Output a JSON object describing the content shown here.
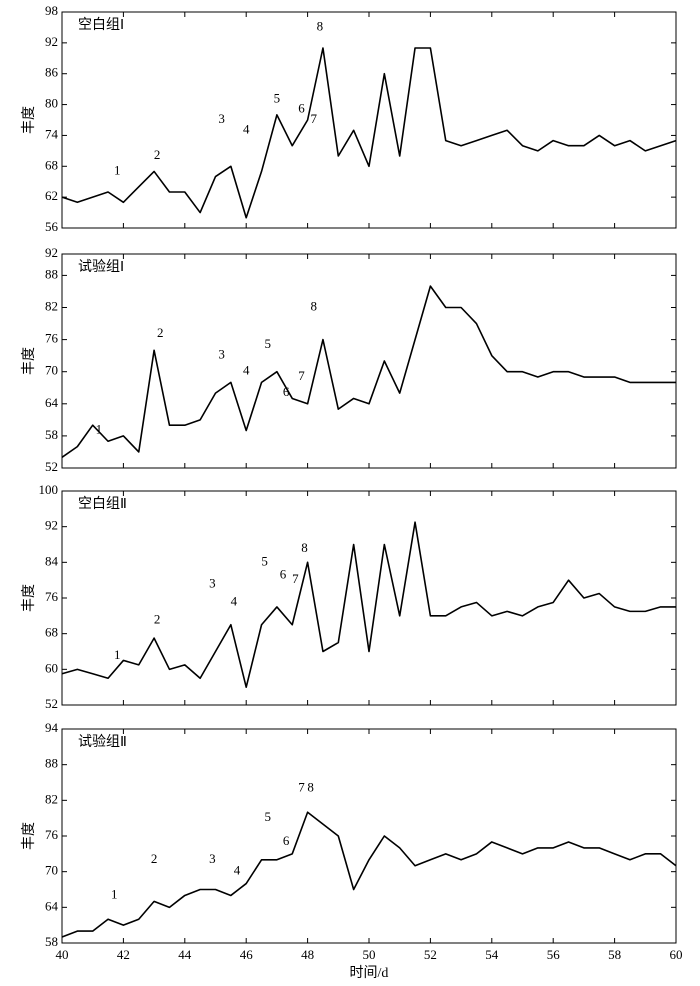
{
  "chart_data": [
    {
      "type": "line",
      "title": "空白组Ⅰ",
      "ylabel": "丰度",
      "color": "#000000",
      "x": [
        40,
        40.5,
        41,
        41.5,
        42,
        42.5,
        43,
        43.5,
        44,
        44.5,
        45,
        45.5,
        46,
        46.5,
        47,
        47.5,
        48,
        48.5,
        49,
        49.5,
        50,
        50.5,
        51,
        51.5,
        52,
        52.5,
        53,
        53.5,
        54,
        54.5,
        55,
        55.5,
        56,
        56.5,
        57,
        57.5,
        58,
        58.5,
        59,
        59.5,
        60
      ],
      "values": [
        62,
        61,
        62,
        63,
        61,
        64,
        67,
        63,
        63,
        59,
        66,
        68,
        58,
        67,
        78,
        72,
        77,
        91,
        70,
        75,
        68,
        86,
        70,
        91,
        91,
        73,
        72,
        73,
        74,
        75,
        72,
        71,
        73,
        72,
        72,
        74,
        72,
        73,
        71,
        72,
        73
      ],
      "xlim": [
        40,
        60
      ],
      "xticks": [
        40,
        42,
        44,
        46,
        48,
        50,
        52,
        54,
        56,
        58,
        60
      ],
      "xtick_labels": false,
      "ylim": [
        56,
        98
      ],
      "yticks": [
        56,
        62,
        68,
        74,
        80,
        86,
        92,
        98
      ],
      "annotations": [
        {
          "text": "1",
          "x": 41.8,
          "y": 67
        },
        {
          "text": "2",
          "x": 43.1,
          "y": 70
        },
        {
          "text": "3",
          "x": 45.2,
          "y": 77
        },
        {
          "text": "4",
          "x": 46,
          "y": 75
        },
        {
          "text": "5",
          "x": 47,
          "y": 81
        },
        {
          "text": "6",
          "x": 47.8,
          "y": 79
        },
        {
          "text": "7",
          "x": 48.2,
          "y": 77
        },
        {
          "text": "8",
          "x": 48.4,
          "y": 95
        }
      ]
    },
    {
      "type": "line",
      "title": "试验组Ⅰ",
      "ylabel": "丰度",
      "color": "#000000",
      "x": [
        40,
        40.5,
        41,
        41.5,
        42,
        42.5,
        43,
        43.5,
        44,
        44.5,
        45,
        45.5,
        46,
        46.5,
        47,
        47.5,
        48,
        48.5,
        49,
        49.5,
        50,
        50.5,
        51,
        51.5,
        52,
        52.5,
        53,
        53.5,
        54,
        54.5,
        55,
        55.5,
        56,
        56.5,
        57,
        57.5,
        58,
        58.5,
        59,
        59.5,
        60
      ],
      "values": [
        54,
        56,
        60,
        57,
        58,
        55,
        74,
        60,
        60,
        61,
        66,
        68,
        59,
        68,
        70,
        65,
        64,
        76,
        63,
        65,
        64,
        72,
        66,
        76,
        86,
        82,
        82,
        79,
        73,
        70,
        70,
        69,
        70,
        70,
        69,
        69,
        69,
        68,
        68,
        68,
        68
      ],
      "xlim": [
        40,
        60
      ],
      "xticks": [
        40,
        42,
        44,
        46,
        48,
        50,
        52,
        54,
        56,
        58,
        60
      ],
      "xtick_labels": false,
      "ylim": [
        52,
        92
      ],
      "yticks": [
        52,
        58,
        64,
        70,
        76,
        82,
        88,
        92
      ],
      "annotations": [
        {
          "text": "1",
          "x": 41.2,
          "y": 59
        },
        {
          "text": "2",
          "x": 43.2,
          "y": 77
        },
        {
          "text": "3",
          "x": 45.2,
          "y": 73
        },
        {
          "text": "4",
          "x": 46,
          "y": 70
        },
        {
          "text": "5",
          "x": 46.7,
          "y": 75
        },
        {
          "text": "6",
          "x": 47.3,
          "y": 66
        },
        {
          "text": "7",
          "x": 47.8,
          "y": 69
        },
        {
          "text": "8",
          "x": 48.2,
          "y": 82
        }
      ]
    },
    {
      "type": "line",
      "title": "空白组Ⅱ",
      "ylabel": "丰度",
      "color": "#000000",
      "x": [
        40,
        40.5,
        41,
        41.5,
        42,
        42.5,
        43,
        43.5,
        44,
        44.5,
        45,
        45.5,
        46,
        46.5,
        47,
        47.5,
        48,
        48.5,
        49,
        49.5,
        50,
        50.5,
        51,
        51.5,
        52,
        52.5,
        53,
        53.5,
        54,
        54.5,
        55,
        55.5,
        56,
        56.5,
        57,
        57.5,
        58,
        58.5,
        59,
        59.5,
        60
      ],
      "values": [
        59,
        60,
        59,
        58,
        62,
        61,
        67,
        60,
        61,
        58,
        64,
        70,
        56,
        70,
        74,
        70,
        84,
        64,
        66,
        88,
        64,
        88,
        72,
        93,
        72,
        72,
        74,
        75,
        72,
        73,
        72,
        74,
        75,
        80,
        76,
        77,
        74,
        73,
        73,
        74,
        74
      ],
      "xlim": [
        40,
        60
      ],
      "xticks": [
        40,
        42,
        44,
        46,
        48,
        50,
        52,
        54,
        56,
        58,
        60
      ],
      "xtick_labels": false,
      "ylim": [
        52,
        100
      ],
      "yticks": [
        52,
        60,
        68,
        76,
        84,
        92,
        100
      ],
      "annotations": [
        {
          "text": "1",
          "x": 41.8,
          "y": 63
        },
        {
          "text": "2",
          "x": 43.1,
          "y": 71
        },
        {
          "text": "3",
          "x": 44.9,
          "y": 79
        },
        {
          "text": "4",
          "x": 45.6,
          "y": 75
        },
        {
          "text": "5",
          "x": 46.6,
          "y": 84
        },
        {
          "text": "6",
          "x": 47.2,
          "y": 81
        },
        {
          "text": "7",
          "x": 47.6,
          "y": 80
        },
        {
          "text": "8",
          "x": 47.9,
          "y": 87
        }
      ]
    },
    {
      "type": "line",
      "title": "试验组Ⅱ",
      "ylabel": "丰度",
      "xlabel": "时间/d",
      "color": "#000000",
      "x": [
        40,
        40.5,
        41,
        41.5,
        42,
        42.5,
        43,
        43.5,
        44,
        44.5,
        45,
        45.5,
        46,
        46.5,
        47,
        47.5,
        48,
        48.5,
        49,
        49.5,
        50,
        50.5,
        51,
        51.5,
        52,
        52.5,
        53,
        53.5,
        54,
        54.5,
        55,
        55.5,
        56,
        56.5,
        57,
        57.5,
        58,
        58.5,
        59,
        59.5,
        60
      ],
      "values": [
        59,
        60,
        60,
        62,
        61,
        62,
        65,
        64,
        66,
        67,
        67,
        66,
        68,
        72,
        72,
        73,
        80,
        78,
        76,
        67,
        72,
        76,
        74,
        71,
        72,
        73,
        72,
        73,
        75,
        74,
        73,
        74,
        74,
        75,
        74,
        74,
        73,
        72,
        73,
        73,
        71
      ],
      "xlim": [
        40,
        60
      ],
      "xticks": [
        40,
        42,
        44,
        46,
        48,
        50,
        52,
        54,
        56,
        58,
        60
      ],
      "xtick_labels": true,
      "ylim": [
        58,
        94
      ],
      "yticks": [
        58,
        64,
        70,
        76,
        82,
        88,
        94
      ],
      "annotations": [
        {
          "text": "1",
          "x": 41.7,
          "y": 66
        },
        {
          "text": "2",
          "x": 43,
          "y": 72
        },
        {
          "text": "3",
          "x": 44.9,
          "y": 72
        },
        {
          "text": "4",
          "x": 45.7,
          "y": 70
        },
        {
          "text": "5",
          "x": 46.7,
          "y": 79
        },
        {
          "text": "6",
          "x": 47.3,
          "y": 75
        },
        {
          "text": "7",
          "x": 47.8,
          "y": 84
        },
        {
          "text": "8",
          "x": 48.1,
          "y": 84
        }
      ]
    }
  ]
}
